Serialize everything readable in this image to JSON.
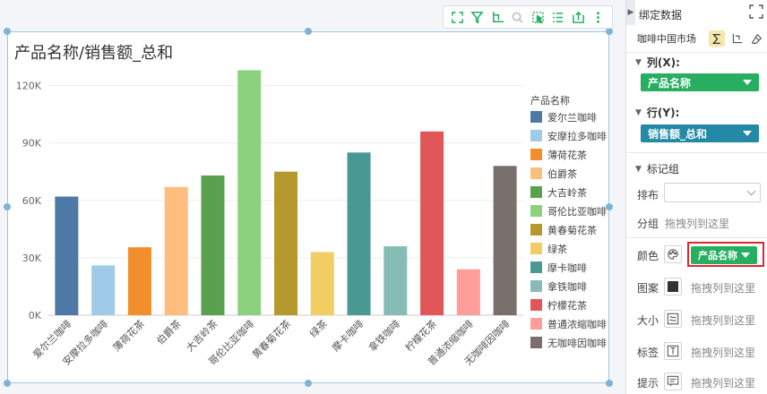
{
  "chart": {
    "title": "产品名称/销售额_总和",
    "legend_title": "产品名称"
  },
  "chart_data": {
    "type": "bar",
    "title": "产品名称/销售额_总和",
    "xlabel": "",
    "ylabel": "",
    "ylim": [
      0,
      120000
    ],
    "yticks": [
      0,
      30000,
      60000,
      90000,
      120000
    ],
    "ytick_labels": [
      "0K",
      "30K",
      "60K",
      "90K",
      "120K"
    ],
    "grid": true,
    "legend_position": "right",
    "categories": [
      "爱尔兰咖啡",
      "安摩拉多咖啡",
      "薄荷花茶",
      "伯爵茶",
      "大吉岭茶",
      "哥伦比亚咖啡",
      "黄春菊花茶",
      "绿茶",
      "摩卡咖啡",
      "拿铁咖啡",
      "柠檬花茶",
      "普通浓缩咖啡",
      "无咖啡因咖啡"
    ],
    "values": [
      62000,
      26000,
      35500,
      67000,
      73000,
      128000,
      75000,
      33000,
      85000,
      36000,
      96000,
      24000,
      78000
    ],
    "colors": [
      "#4e79a7",
      "#a0cbe8",
      "#f28e2b",
      "#ffbe7d",
      "#59a14f",
      "#8cd17d",
      "#b6992d",
      "#f1ce63",
      "#499894",
      "#86bcb6",
      "#e15759",
      "#ff9d9a",
      "#79706e"
    ]
  },
  "toolbar": {
    "icons": [
      "fullscreen-icon",
      "filter-icon",
      "axis-swap-icon",
      "zoom-icon",
      "select-icon",
      "list-icon",
      "export-icon",
      "more-icon"
    ]
  },
  "panel": {
    "title": "绑定数据",
    "source_name": "咖啡中国市场",
    "columns_label": "列(X):",
    "columns_field": "产品名称",
    "columns_color": "#27ae60",
    "rows_label": "行(Y):",
    "rows_field": "销售额_总和",
    "rows_color": "#2389a6",
    "marks_label": "标记组",
    "layout_label": "排布",
    "group_label": "分组",
    "group_placeholder": "拖拽列到这里",
    "color_label": "颜色",
    "color_field": "产品名称",
    "pattern_label": "图案",
    "size_label": "大小",
    "tag_label": "标签",
    "tooltip_label": "提示",
    "drop_placeholder": "拖拽列到这里"
  }
}
